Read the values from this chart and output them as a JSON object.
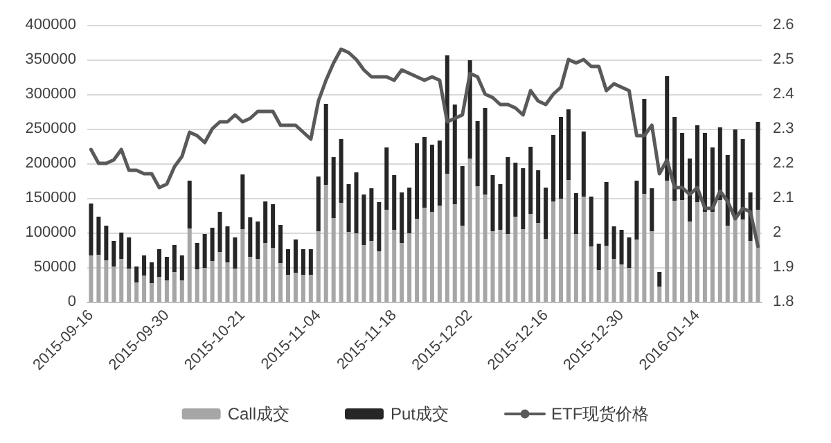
{
  "chart_data": {
    "type": "bar",
    "stacked": true,
    "categories": [
      "2015-09-16",
      null,
      null,
      null,
      null,
      null,
      null,
      null,
      null,
      null,
      "2015-09-30",
      null,
      null,
      null,
      null,
      null,
      null,
      null,
      null,
      null,
      "2015-10-21",
      null,
      null,
      null,
      null,
      null,
      null,
      null,
      null,
      null,
      "2015-11-04",
      null,
      null,
      null,
      null,
      null,
      null,
      null,
      null,
      null,
      "2015-11-18",
      null,
      null,
      null,
      null,
      null,
      null,
      null,
      null,
      null,
      "2015-12-02",
      null,
      null,
      null,
      null,
      null,
      null,
      null,
      null,
      null,
      "2015-12-16",
      null,
      null,
      null,
      null,
      null,
      null,
      null,
      null,
      null,
      "2015-12-30",
      null,
      null,
      null,
      null,
      null,
      null,
      null,
      null,
      null,
      "2016-01-14",
      null,
      null,
      null,
      null,
      null,
      null,
      null,
      null
    ],
    "series": [
      {
        "name": "Call成交",
        "color": "#a6a6a6",
        "values": [
          67000,
          68000,
          60000,
          51000,
          62000,
          48000,
          28000,
          38000,
          27000,
          36000,
          31000,
          43000,
          31000,
          106000,
          47000,
          49000,
          59000,
          72000,
          57000,
          48000,
          105000,
          65000,
          62000,
          85000,
          78000,
          56000,
          39000,
          42000,
          39000,
          39000,
          102000,
          169000,
          121000,
          143000,
          101000,
          99000,
          82000,
          88000,
          73000,
          133000,
          104000,
          85000,
          99000,
          120000,
          136000,
          130000,
          139000,
          185000,
          141000,
          110000,
          207000,
          167000,
          155000,
          102000,
          104000,
          98000,
          123000,
          105000,
          127000,
          114000,
          91000,
          145000,
          149000,
          176000,
          98000,
          152000,
          80000,
          46000,
          81000,
          62000,
          54000,
          49000,
          90000,
          156000,
          102000,
          22000,
          175000,
          146000,
          147000,
          116000,
          144000,
          130000,
          130000,
          147000,
          110000,
          119000,
          119000,
          88000,
          133000
        ]
      },
      {
        "name": "Put成交",
        "color": "#262626",
        "values": [
          75000,
          55000,
          50000,
          37000,
          38000,
          45000,
          23000,
          29000,
          30000,
          40000,
          34000,
          39000,
          36000,
          69000,
          38000,
          49000,
          48000,
          58000,
          52000,
          45000,
          79000,
          57000,
          54000,
          60000,
          63000,
          55000,
          37000,
          48000,
          37000,
          37000,
          79000,
          117000,
          88000,
          92000,
          69000,
          88000,
          73000,
          76000,
          71000,
          90000,
          79000,
          73000,
          66000,
          109000,
          102000,
          97000,
          94000,
          171000,
          144000,
          86000,
          142000,
          94000,
          125000,
          81000,
          66000,
          111000,
          78000,
          88000,
          97000,
          76000,
          74000,
          96000,
          118000,
          102000,
          59000,
          94000,
          72000,
          38000,
          92000,
          47000,
          50000,
          44000,
          85000,
          137000,
          62000,
          21000,
          151000,
          121000,
          97000,
          91000,
          111000,
          114000,
          93000,
          105000,
          102000,
          130000,
          116000,
          70000,
          127000
        ]
      },
      {
        "name": "ETF现货价格",
        "type": "line",
        "axis": "y2",
        "color": "#595959",
        "values": [
          2.24,
          2.2,
          2.2,
          2.21,
          2.24,
          2.18,
          2.18,
          2.17,
          2.17,
          2.13,
          2.14,
          2.19,
          2.22,
          2.29,
          2.28,
          2.26,
          2.3,
          2.32,
          2.32,
          2.34,
          2.32,
          2.33,
          2.35,
          2.35,
          2.35,
          2.31,
          2.31,
          2.31,
          2.29,
          2.27,
          2.38,
          2.44,
          2.49,
          2.53,
          2.52,
          2.5,
          2.47,
          2.45,
          2.45,
          2.45,
          2.44,
          2.47,
          2.46,
          2.45,
          2.44,
          2.45,
          2.44,
          2.32,
          2.33,
          2.34,
          2.46,
          2.45,
          2.4,
          2.39,
          2.37,
          2.37,
          2.36,
          2.34,
          2.41,
          2.38,
          2.37,
          2.4,
          2.42,
          2.5,
          2.49,
          2.5,
          2.48,
          2.48,
          2.41,
          2.43,
          2.42,
          2.41,
          2.28,
          2.28,
          2.31,
          2.17,
          2.21,
          2.13,
          2.13,
          2.11,
          2.13,
          2.07,
          2.07,
          2.12,
          2.09,
          2.04,
          2.07,
          2.06,
          1.96
        ]
      }
    ],
    "ylim": [
      0,
      400000
    ],
    "yticks": [
      0,
      50000,
      100000,
      150000,
      200000,
      250000,
      300000,
      350000,
      400000
    ],
    "y2lim": [
      1.8,
      2.6
    ],
    "y2ticks": [
      1.8,
      1.9,
      2.0,
      2.1,
      2.2,
      2.3,
      2.4,
      2.5,
      2.6
    ],
    "grid": "y",
    "legend": "bottom",
    "marker": "none",
    "line_style": "solid"
  }
}
